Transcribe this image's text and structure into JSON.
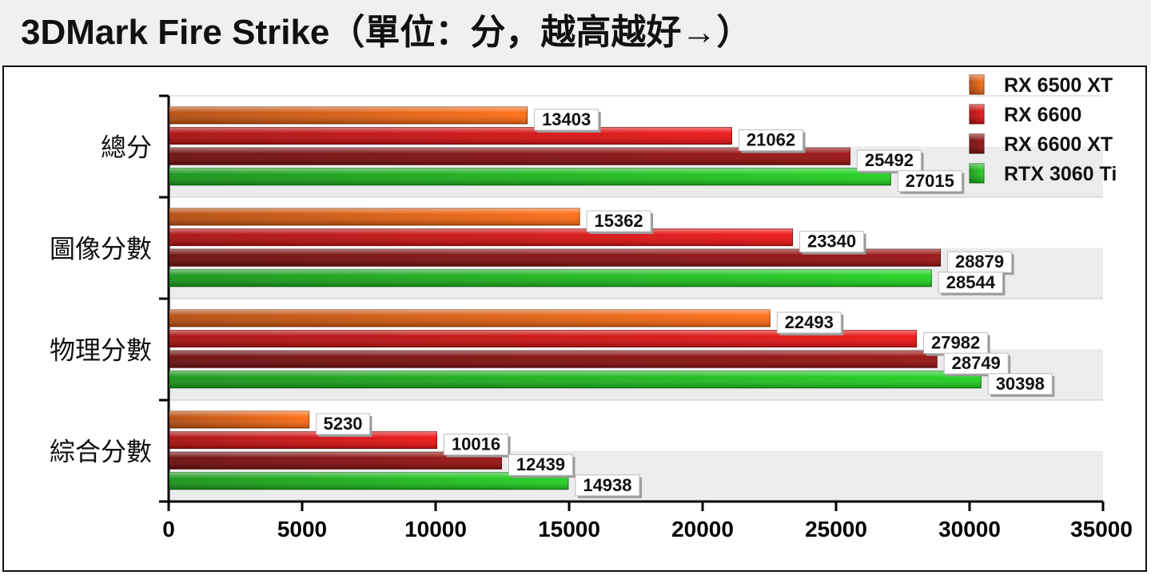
{
  "title": "3DMark Fire Strike（單位：分，越高越好→）",
  "chart_data": {
    "type": "bar",
    "orientation": "horizontal",
    "categories": [
      "總分",
      "圖像分數",
      "物理分數",
      "綜合分數"
    ],
    "series": [
      {
        "name": "RX 6500 XT",
        "color": "#ff6a10",
        "values": [
          13403,
          15362,
          22493,
          5230
        ]
      },
      {
        "name": "RX 6600",
        "color": "#ee1111",
        "values": [
          21062,
          23340,
          27982,
          10016
        ]
      },
      {
        "name": "RX 6600 XT",
        "color": "#990e0e",
        "values": [
          25492,
          28879,
          28749,
          12439
        ]
      },
      {
        "name": "RTX 3060 Ti",
        "color": "#1ed21e",
        "values": [
          27015,
          28544,
          30398,
          14938
        ]
      }
    ],
    "xlim": [
      0,
      35000
    ],
    "xticks": [
      "0",
      "5000",
      "10000",
      "15000",
      "20000",
      "25000",
      "30000",
      "35000"
    ],
    "legend": "top-right",
    "grid": false
  }
}
